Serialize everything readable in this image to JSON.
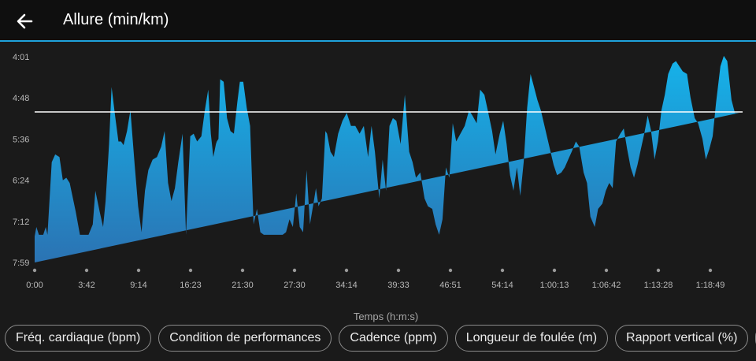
{
  "header": {
    "title": "Allure (min/km)"
  },
  "icons": {
    "back": "arrow-left-icon"
  },
  "colors": {
    "accent": "#1fa3dc",
    "fill_top": "#15b3ea",
    "fill_bottom": "#2b73b3",
    "average_line": "#ffffff"
  },
  "chart_data": {
    "type": "area",
    "title": "Allure (min/km)",
    "xlabel": "Temps (h:m:s)",
    "ylabel": "",
    "y_ticks": [
      "4:01",
      "4:48",
      "5:36",
      "6:24",
      "7:12",
      "7:59"
    ],
    "y_inverted": true,
    "x_ticks": [
      "0:00",
      "3:42",
      "9:14",
      "16:23",
      "21:30",
      "27:30",
      "34:14",
      "39:33",
      "46:51",
      "54:14",
      "1:00:13",
      "1:06:42",
      "1:13:28",
      "1:18:49"
    ],
    "grid": false,
    "average_pace_min_per_km": 5.08,
    "series": [
      {
        "x_min": [
          0.0,
          0.2,
          0.5,
          1.0,
          1.3,
          1.5,
          2.0,
          2.4,
          2.9,
          3.3,
          3.7,
          4.1,
          4.8,
          5.3,
          5.8,
          6.3,
          6.8,
          7.1,
          7.6,
          8.0,
          8.3,
          8.7,
          9.0,
          9.4,
          9.8,
          10.1,
          10.4,
          10.8,
          11.2,
          11.7,
          12.1,
          12.5,
          12.9,
          13.3,
          13.8,
          14.3,
          14.8,
          15.2,
          15.6,
          16.0,
          16.4,
          16.8,
          17.3,
          17.7,
          18.2,
          18.6,
          19.0,
          19.5,
          19.9,
          20.3,
          20.6,
          20.9,
          21.2,
          21.3,
          21.5,
          21.7,
          22.1,
          22.5,
          22.9,
          23.3,
          23.7,
          24.0,
          24.4,
          24.8,
          25.2,
          25.6,
          26.0,
          26.4,
          26.8,
          27.3,
          27.7,
          28.2,
          28.6,
          29.0,
          29.4,
          29.8,
          30.2,
          30.6,
          31.0,
          31.4,
          31.8,
          32.2,
          32.6,
          32.9,
          33.2,
          33.6,
          34.0,
          34.2,
          34.6,
          35.0,
          35.5,
          36.0,
          36.5,
          37.0,
          37.5,
          38.0,
          38.5,
          39.0,
          39.4,
          39.8,
          40.3,
          40.7,
          41.1,
          41.5,
          41.9,
          42.3,
          42.8,
          43.3,
          43.8,
          44.2,
          44.6,
          45.1,
          45.6,
          46.0,
          46.5,
          46.9,
          47.3,
          47.7,
          48.1,
          48.5,
          48.9,
          49.3,
          49.8,
          50.3,
          50.8,
          51.2,
          51.7,
          52.1,
          52.6,
          53.0,
          53.5,
          53.9,
          54.4,
          54.8,
          55.2,
          55.6,
          56.0,
          56.4,
          56.8,
          57.2,
          57.6,
          58.0,
          58.4,
          58.8,
          59.2,
          59.7,
          60.2,
          60.7,
          61.1,
          61.6,
          62.0,
          62.4,
          62.8,
          63.3,
          63.7,
          64.2,
          64.6,
          65.0,
          65.5,
          65.9,
          66.4,
          66.8,
          67.2,
          67.6,
          68.0,
          68.5,
          68.9,
          69.3,
          69.7,
          70.1,
          70.5,
          70.9,
          71.3,
          71.7,
          72.1,
          72.5,
          72.9,
          73.3,
          73.7,
          74.1,
          74.6,
          75.0,
          75.4,
          75.8,
          76.3,
          76.7,
          77.2,
          77.6,
          78.1,
          78.5,
          78.9,
          79.3,
          79.7,
          80.2,
          80.6,
          81.0,
          81.5,
          81.9,
          82.4,
          82.8
        ],
        "pace_min_per_km": [
          7.48,
          7.3,
          7.45,
          7.45,
          7.3,
          7.45,
          6.05,
          5.9,
          5.95,
          6.4,
          6.35,
          6.45,
          7.0,
          7.45,
          7.45,
          7.45,
          7.25,
          6.6,
          7.0,
          7.3,
          6.8,
          5.7,
          4.6,
          5.15,
          5.65,
          5.65,
          5.72,
          5.45,
          5.05,
          6.1,
          6.9,
          7.4,
          6.6,
          6.2,
          6.0,
          5.95,
          5.75,
          5.45,
          6.45,
          6.8,
          6.55,
          6.05,
          5.5,
          7.45,
          5.55,
          5.5,
          5.65,
          5.55,
          5.05,
          4.65,
          5.5,
          5.95,
          5.7,
          5.65,
          5.6,
          4.45,
          4.5,
          5.2,
          5.45,
          5.5,
          4.9,
          4.5,
          4.5,
          5.0,
          5.35,
          7.25,
          6.95,
          7.4,
          7.45,
          7.45,
          7.45,
          7.45,
          7.45,
          7.45,
          7.4,
          7.15,
          7.3,
          6.65,
          7.3,
          7.4,
          6.2,
          7.25,
          6.85,
          6.55,
          6.9,
          6.75,
          5.45,
          5.5,
          5.85,
          5.95,
          5.5,
          5.25,
          5.1,
          5.35,
          5.35,
          5.5,
          5.35,
          5.95,
          5.35,
          5.85,
          6.75,
          6.0,
          6.6,
          5.35,
          5.2,
          5.25,
          5.7,
          4.75,
          5.85,
          6.05,
          6.35,
          6.25,
          6.75,
          6.9,
          6.95,
          7.25,
          7.45,
          7.15,
          6.15,
          6.35,
          5.3,
          5.65,
          5.5,
          5.35,
          5.05,
          5.15,
          5.3,
          4.65,
          4.75,
          5.05,
          5.45,
          5.9,
          5.5,
          5.25,
          5.7,
          6.3,
          6.6,
          6.15,
          6.7,
          6.05,
          5.0,
          4.35,
          4.6,
          4.85,
          5.05,
          5.4,
          5.75,
          6.1,
          6.3,
          6.25,
          6.15,
          6.0,
          5.85,
          5.65,
          5.75,
          6.25,
          6.45,
          7.1,
          7.3,
          6.95,
          6.85,
          6.6,
          6.45,
          6.55,
          5.65,
          5.5,
          5.4,
          5.8,
          6.15,
          6.35,
          6.1,
          5.8,
          5.5,
          5.15,
          5.45,
          6.0,
          5.65,
          5.05,
          4.75,
          4.35,
          4.15,
          4.1,
          4.2,
          4.3,
          4.35,
          4.8,
          5.2,
          5.3,
          5.6,
          6.0,
          5.8,
          5.55,
          4.9,
          4.2,
          4.0,
          4.1,
          4.85,
          5.1,
          5.1
        ]
      }
    ]
  },
  "chips": [
    {
      "label": "Fréq. cardiaque (bpm)"
    },
    {
      "label": "Condition de performances"
    },
    {
      "label": "Cadence (ppm)"
    },
    {
      "label": "Longueur de foulée (m)"
    },
    {
      "label": "Rapport vertical (%)"
    },
    {
      "label": ""
    }
  ]
}
